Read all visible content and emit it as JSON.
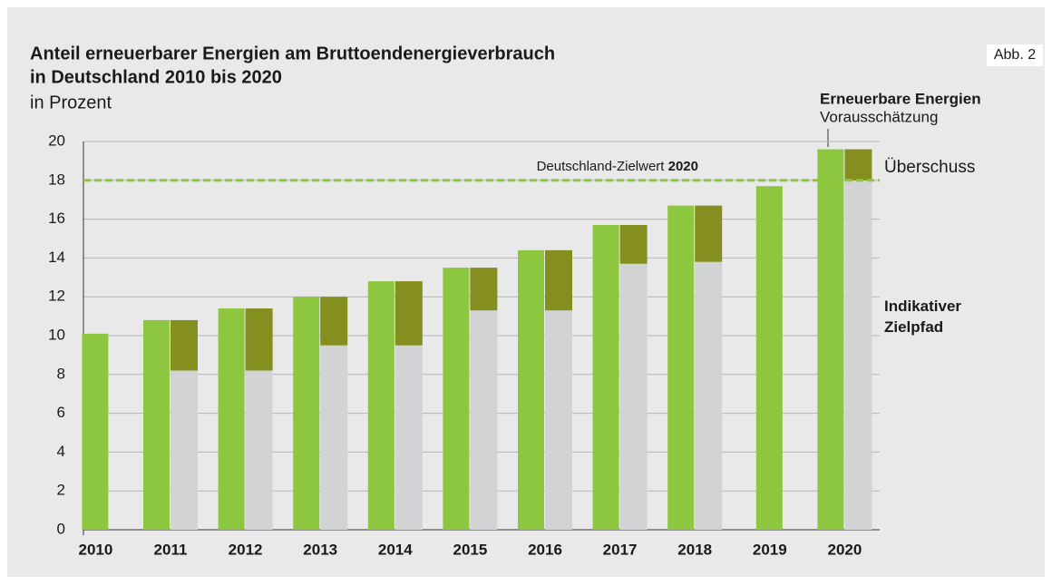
{
  "chart_data": {
    "type": "bar",
    "title": "Anteil erneuerbarer Energien am Bruttoendenergieverbrauch",
    "title_line2": "in Deutschland 2010 bis 2020",
    "subtitle": "in Prozent",
    "figure_label": "Abb. 2",
    "forecast_note": "Vorausschätzung",
    "target": {
      "label": "Deutschland-Zielwert",
      "label_bold": "2020",
      "value": 18,
      "color": "#8dc63f"
    },
    "categories": [
      "2010",
      "2011",
      "2012",
      "2013",
      "2014",
      "2015",
      "2016",
      "2017",
      "2018",
      "2019",
      "2020"
    ],
    "series": [
      {
        "name": "Erneuerbare Energien",
        "color": "#8dc63f",
        "values": [
          10.1,
          10.8,
          11.4,
          12.0,
          12.8,
          13.5,
          14.4,
          15.7,
          16.7,
          17.7,
          19.6
        ]
      },
      {
        "name": "Indikativer Zielpfad",
        "color": "#d1d3d4",
        "values": [
          null,
          8.2,
          8.2,
          9.5,
          9.5,
          11.3,
          11.3,
          13.7,
          13.8,
          null,
          18
        ]
      },
      {
        "name": "Überschuss",
        "color": "#858f1f",
        "values": [
          null,
          2.6,
          3.2,
          2.5,
          3.3,
          2.2,
          3.1,
          2.0,
          2.9,
          null,
          1.6
        ]
      }
    ],
    "ylim": [
      0,
      20
    ],
    "yticks": [
      0,
      2,
      4,
      6,
      8,
      10,
      12,
      14,
      16,
      18,
      20
    ],
    "grid": true
  }
}
